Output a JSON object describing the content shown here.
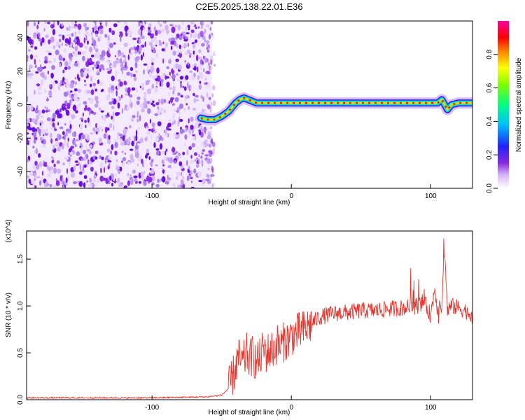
{
  "page_title": "C2E5.2025.138.22.01.E36",
  "top_panel": {
    "type": "heatmap",
    "xlabel": "Height of straight line (km)",
    "ylabel": "Frequency (Hz)",
    "xlim": [
      -190,
      130
    ],
    "ylim": [
      -50,
      50
    ],
    "xticks": [
      -100,
      0,
      100
    ],
    "yticks": [
      -40,
      -20,
      0,
      20,
      40
    ],
    "noise_region_x": [
      -190,
      -55
    ],
    "signal_track": {
      "x": [
        -65,
        -60,
        -55,
        -50,
        -45,
        -40,
        -37,
        -34,
        -31,
        -28,
        -25,
        -22,
        -20,
        -15,
        -10,
        -5,
        0,
        5,
        10,
        20,
        30,
        40,
        50,
        60,
        70,
        80,
        90,
        100,
        105,
        108,
        110,
        112,
        115,
        120,
        125,
        130
      ],
      "y": [
        -8,
        -9,
        -9,
        -7,
        -4,
        1,
        3,
        4,
        3,
        2,
        1,
        1,
        1,
        1,
        1,
        1,
        1,
        1,
        1,
        1,
        1,
        1,
        1,
        1,
        1,
        1,
        1,
        1,
        1,
        3,
        0,
        -3,
        0,
        1,
        1,
        1
      ]
    }
  },
  "colorbar": {
    "label": "Normalized spectral amplitude",
    "ticks": [
      "0.0",
      "0.2",
      "0.4",
      "0.6",
      "0.8"
    ],
    "range": [
      0,
      1
    ],
    "colormap": [
      "#ffffff",
      "#8a2be2",
      "#0000ff",
      "#00bfff",
      "#00ff7f",
      "#ffff00",
      "#ff8000",
      "#ff0000",
      "#ff00ff"
    ]
  },
  "chart_data": {
    "type": "line",
    "xlabel": "Height of straight line (km)",
    "ylabel": "SNR (10 * v/v)",
    "y_multiplier": "(x10^4)",
    "xlim": [
      -190,
      130
    ],
    "ylim": [
      0,
      1.8
    ],
    "xticks": [
      -100,
      0,
      100
    ],
    "yticks": [
      "0.0",
      "0.5",
      "1.0",
      "1.5"
    ],
    "series": [
      {
        "color": "#e8342c",
        "x": [
          -190,
          -150,
          -100,
          -60,
          -50,
          -45,
          -42,
          -40,
          -38,
          -35,
          -32,
          -30,
          -28,
          -25,
          -22,
          -20,
          -18,
          -15,
          -12,
          -10,
          -8,
          -5,
          -2,
          0,
          5,
          10,
          15,
          20,
          25,
          30,
          40,
          50,
          60,
          70,
          80,
          90,
          95,
          100,
          103,
          105,
          108,
          110,
          112,
          115,
          120,
          125,
          130
        ],
        "y": [
          0.02,
          0.02,
          0.02,
          0.03,
          0.05,
          0.12,
          0.25,
          0.35,
          0.45,
          0.38,
          0.5,
          0.42,
          0.48,
          0.4,
          0.45,
          0.55,
          0.5,
          0.52,
          0.55,
          0.6,
          0.58,
          0.62,
          0.64,
          0.68,
          0.72,
          0.75,
          0.82,
          0.88,
          0.9,
          0.92,
          0.93,
          0.95,
          0.95,
          0.97,
          0.98,
          1.0,
          1.05,
          0.9,
          1.2,
          0.95,
          1.0,
          1.6,
          0.95,
          1.0,
          0.98,
          0.95,
          0.9
        ]
      }
    ]
  }
}
